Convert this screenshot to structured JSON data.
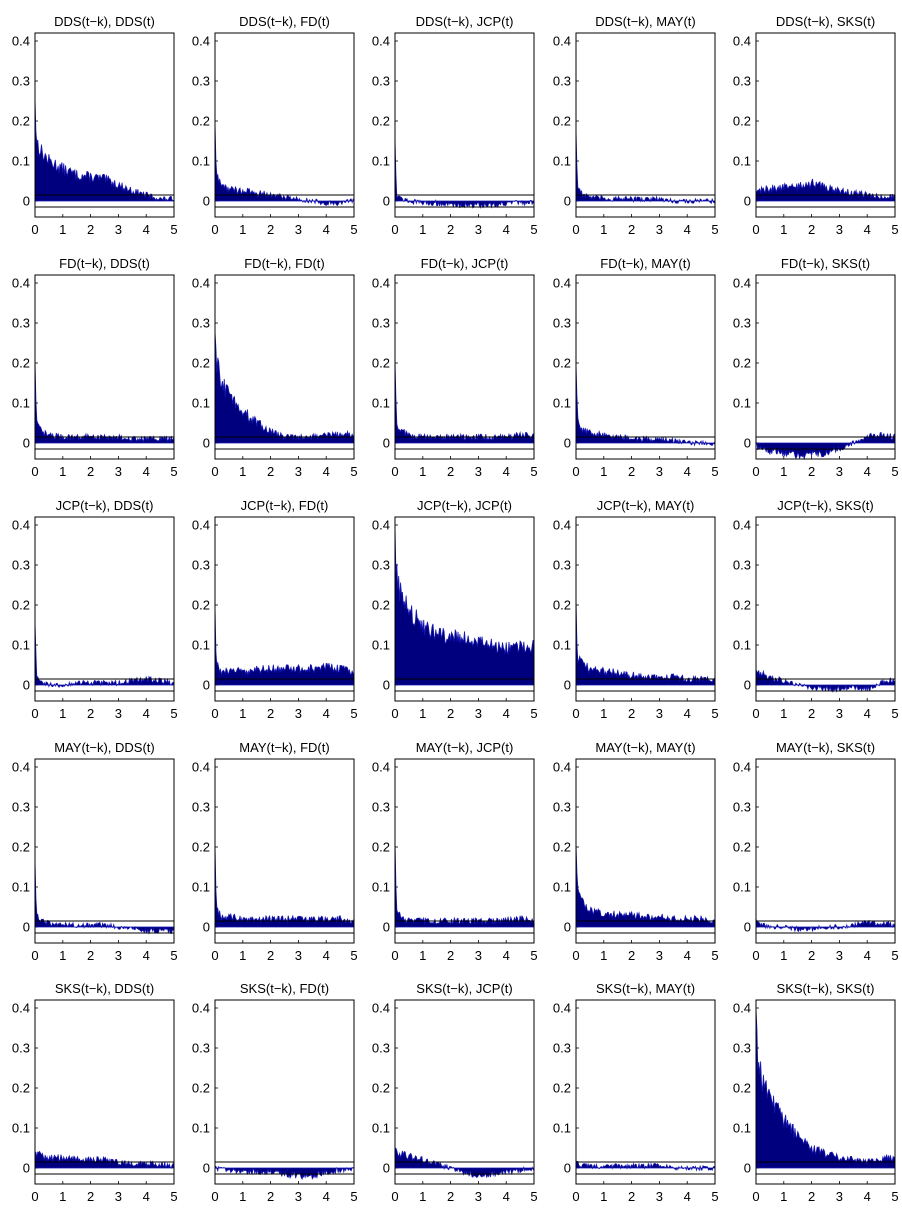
{
  "figure": {
    "yticks": [
      "0.4",
      "0.3",
      "0.2",
      "0.1",
      "0"
    ],
    "xticks": [
      "0",
      "1",
      "2",
      "3",
      "4",
      "5"
    ],
    "colors": {
      "fill": "#00007f",
      "stroke": "#1515b0",
      "axis": "#000000",
      "background": "#ffffff"
    }
  },
  "chart_data": [
    {
      "type": "area",
      "title": "DDS(t−k), DDS(t)",
      "xlim": [
        0,
        5
      ],
      "ylim": [
        -0.04,
        0.42
      ],
      "bands": [
        0.015,
        -0.015
      ],
      "x": [
        0,
        0.05,
        0.25,
        0.5,
        1,
        1.5,
        2,
        2.5,
        3,
        3.5,
        4,
        4.5,
        5
      ],
      "y": [
        0.26,
        0.15,
        0.12,
        0.1,
        0.08,
        0.065,
        0.06,
        0.055,
        0.04,
        0.025,
        0.015,
        0.005,
        0.005
      ]
    },
    {
      "type": "area",
      "title": "DDS(t−k), FD(t)",
      "xlim": [
        0,
        5
      ],
      "ylim": [
        -0.04,
        0.42
      ],
      "bands": [
        0.015,
        -0.015
      ],
      "x": [
        0,
        0.05,
        0.25,
        0.5,
        1,
        1.5,
        2,
        2.5,
        3,
        3.5,
        4,
        4.5,
        5
      ],
      "y": [
        0.2,
        0.06,
        0.04,
        0.03,
        0.025,
        0.02,
        0.015,
        0.01,
        0.005,
        0,
        -0.005,
        -0.005,
        0
      ]
    },
    {
      "type": "area",
      "title": "DDS(t−k), JCP(t)",
      "xlim": [
        0,
        5
      ],
      "ylim": [
        -0.04,
        0.42
      ],
      "bands": [
        0.015,
        -0.015
      ],
      "x": [
        0,
        0.05,
        0.25,
        0.5,
        1,
        1.5,
        2,
        2.5,
        3,
        3.5,
        4,
        4.5,
        5
      ],
      "y": [
        0.16,
        0.02,
        0.005,
        0,
        -0.005,
        -0.005,
        -0.01,
        -0.01,
        -0.01,
        -0.01,
        -0.005,
        -0.005,
        -0.005
      ]
    },
    {
      "type": "area",
      "title": "DDS(t−k), MAY(t)",
      "xlim": [
        0,
        5
      ],
      "ylim": [
        -0.04,
        0.42
      ],
      "bands": [
        0.015,
        -0.015
      ],
      "x": [
        0,
        0.05,
        0.25,
        0.5,
        1,
        1.5,
        2,
        2.5,
        3,
        3.5,
        4,
        4.5,
        5
      ],
      "y": [
        0.18,
        0.04,
        0.015,
        0.01,
        0.005,
        0.005,
        0.005,
        0.005,
        0.005,
        0,
        0,
        0,
        0
      ]
    },
    {
      "type": "area",
      "title": "DDS(t−k), SKS(t)",
      "xlim": [
        0,
        5
      ],
      "ylim": [
        -0.04,
        0.42
      ],
      "bands": [
        0.015,
        -0.015
      ],
      "x": [
        0,
        0.05,
        0.25,
        0.5,
        1,
        1.5,
        2,
        2.5,
        3,
        3.5,
        4,
        4.5,
        5
      ],
      "y": [
        0.02,
        0.025,
        0.03,
        0.03,
        0.035,
        0.035,
        0.045,
        0.035,
        0.025,
        0.02,
        0.015,
        0.01,
        0.01
      ]
    },
    {
      "type": "area",
      "title": "FD(t−k), DDS(t)",
      "xlim": [
        0,
        5
      ],
      "ylim": [
        -0.04,
        0.42
      ],
      "bands": [
        0.015,
        -0.015
      ],
      "x": [
        0,
        0.05,
        0.25,
        0.5,
        1,
        1.5,
        2,
        2.5,
        3,
        3.5,
        4,
        4.5,
        5
      ],
      "y": [
        0.21,
        0.05,
        0.025,
        0.02,
        0.015,
        0.015,
        0.015,
        0.015,
        0.015,
        0.01,
        0.01,
        0.01,
        0.01
      ]
    },
    {
      "type": "area",
      "title": "FD(t−k), FD(t)",
      "xlim": [
        0,
        5
      ],
      "ylim": [
        -0.04,
        0.42
      ],
      "bands": [
        0.015,
        -0.015
      ],
      "x": [
        0,
        0.05,
        0.25,
        0.5,
        1,
        1.5,
        2,
        2.5,
        3,
        3.5,
        4,
        4.5,
        5
      ],
      "y": [
        0.28,
        0.2,
        0.15,
        0.12,
        0.08,
        0.05,
        0.03,
        0.015,
        0.015,
        0.015,
        0.02,
        0.02,
        0.025
      ]
    },
    {
      "type": "area",
      "title": "FD(t−k), JCP(t)",
      "xlim": [
        0,
        5
      ],
      "ylim": [
        -0.04,
        0.42
      ],
      "bands": [
        0.015,
        -0.015
      ],
      "x": [
        0,
        0.05,
        0.25,
        0.5,
        1,
        1.5,
        2,
        2.5,
        3,
        3.5,
        4,
        4.5,
        5
      ],
      "y": [
        0.21,
        0.05,
        0.03,
        0.02,
        0.015,
        0.015,
        0.015,
        0.015,
        0.015,
        0.015,
        0.015,
        0.02,
        0.02
      ]
    },
    {
      "type": "area",
      "title": "FD(t−k), MAY(t)",
      "xlim": [
        0,
        5
      ],
      "ylim": [
        -0.04,
        0.42
      ],
      "bands": [
        0.015,
        -0.015
      ],
      "x": [
        0,
        0.05,
        0.25,
        0.5,
        1,
        1.5,
        2,
        2.5,
        3,
        3.5,
        4,
        4.5,
        5
      ],
      "y": [
        0.2,
        0.06,
        0.035,
        0.025,
        0.02,
        0.015,
        0.01,
        0.01,
        0.01,
        0.005,
        0,
        0,
        0
      ]
    },
    {
      "type": "area",
      "title": "FD(t−k), SKS(t)",
      "xlim": [
        0,
        5
      ],
      "ylim": [
        -0.04,
        0.42
      ],
      "bands": [
        0.015,
        -0.015
      ],
      "x": [
        0,
        0.05,
        0.25,
        0.5,
        1,
        1.5,
        2,
        2.5,
        3,
        3.5,
        4,
        4.5,
        5
      ],
      "y": [
        0,
        -0.01,
        -0.015,
        -0.02,
        -0.025,
        -0.03,
        -0.03,
        -0.025,
        -0.015,
        0,
        0.015,
        0.02,
        0.015
      ]
    },
    {
      "type": "area",
      "title": "JCP(t−k), DDS(t)",
      "xlim": [
        0,
        5
      ],
      "ylim": [
        -0.04,
        0.42
      ],
      "bands": [
        0.015,
        -0.015
      ],
      "x": [
        0,
        0.05,
        0.25,
        0.5,
        1,
        1.5,
        2,
        2.5,
        3,
        3.5,
        4,
        4.5,
        5
      ],
      "y": [
        0.16,
        0.02,
        0.005,
        0,
        0,
        0.005,
        0.005,
        0.005,
        0.005,
        0.01,
        0.015,
        0.01,
        0.005
      ]
    },
    {
      "type": "area",
      "title": "JCP(t−k), FD(t)",
      "xlim": [
        0,
        5
      ],
      "ylim": [
        -0.04,
        0.42
      ],
      "bands": [
        0.015,
        -0.015
      ],
      "x": [
        0,
        0.05,
        0.25,
        0.5,
        1,
        1.5,
        2,
        2.5,
        3,
        3.5,
        4,
        4.5,
        5
      ],
      "y": [
        0.2,
        0.05,
        0.03,
        0.035,
        0.035,
        0.04,
        0.04,
        0.04,
        0.04,
        0.04,
        0.045,
        0.04,
        0.035
      ]
    },
    {
      "type": "area",
      "title": "JCP(t−k), JCP(t)",
      "xlim": [
        0,
        5
      ],
      "ylim": [
        -0.04,
        0.42
      ],
      "bands": [
        0.015,
        -0.015
      ],
      "x": [
        0,
        0.05,
        0.25,
        0.5,
        1,
        1.5,
        2,
        2.5,
        3,
        3.5,
        4,
        4.5,
        5
      ],
      "y": [
        0.4,
        0.28,
        0.22,
        0.18,
        0.15,
        0.13,
        0.12,
        0.115,
        0.11,
        0.1,
        0.09,
        0.095,
        0.1
      ]
    },
    {
      "type": "area",
      "title": "JCP(t−k), MAY(t)",
      "xlim": [
        0,
        5
      ],
      "ylim": [
        -0.04,
        0.42
      ],
      "bands": [
        0.015,
        -0.015
      ],
      "x": [
        0,
        0.05,
        0.25,
        0.5,
        1,
        1.5,
        2,
        2.5,
        3,
        3.5,
        4,
        4.5,
        5
      ],
      "y": [
        0.22,
        0.07,
        0.05,
        0.04,
        0.035,
        0.03,
        0.025,
        0.02,
        0.02,
        0.02,
        0.015,
        0.015,
        0.015
      ]
    },
    {
      "type": "area",
      "title": "JCP(t−k), SKS(t)",
      "xlim": [
        0,
        5
      ],
      "ylim": [
        -0.04,
        0.42
      ],
      "bands": [
        0.015,
        -0.015
      ],
      "x": [
        0,
        0.05,
        0.25,
        0.5,
        1,
        1.5,
        2,
        2.5,
        3,
        3.5,
        4,
        4.5,
        5
      ],
      "y": [
        0.04,
        0.035,
        0.03,
        0.02,
        0.01,
        0,
        -0.005,
        -0.01,
        -0.01,
        -0.005,
        -0.01,
        0.005,
        0.015
      ]
    },
    {
      "type": "area",
      "title": "MAY(t−k), DDS(t)",
      "xlim": [
        0,
        5
      ],
      "ylim": [
        -0.04,
        0.42
      ],
      "bands": [
        0.015,
        -0.015
      ],
      "x": [
        0,
        0.05,
        0.25,
        0.5,
        1,
        1.5,
        2,
        2.5,
        3,
        3.5,
        4,
        4.5,
        5
      ],
      "y": [
        0.17,
        0.03,
        0.015,
        0.01,
        0.005,
        0.005,
        0.005,
        0.005,
        0,
        -0.005,
        -0.01,
        -0.01,
        -0.01
      ]
    },
    {
      "type": "area",
      "title": "MAY(t−k), FD(t)",
      "xlim": [
        0,
        5
      ],
      "ylim": [
        -0.04,
        0.42
      ],
      "bands": [
        0.015,
        -0.015
      ],
      "x": [
        0,
        0.05,
        0.25,
        0.5,
        1,
        1.5,
        2,
        2.5,
        3,
        3.5,
        4,
        4.5,
        5
      ],
      "y": [
        0.21,
        0.04,
        0.025,
        0.025,
        0.02,
        0.02,
        0.02,
        0.02,
        0.02,
        0.02,
        0.02,
        0.02,
        0.015
      ]
    },
    {
      "type": "area",
      "title": "MAY(t−k), JCP(t)",
      "xlim": [
        0,
        5
      ],
      "ylim": [
        -0.04,
        0.42
      ],
      "bands": [
        0.015,
        -0.015
      ],
      "x": [
        0,
        0.05,
        0.25,
        0.5,
        1,
        1.5,
        2,
        2.5,
        3,
        3.5,
        4,
        4.5,
        5
      ],
      "y": [
        0.22,
        0.05,
        0.02,
        0.015,
        0.015,
        0.015,
        0.015,
        0.015,
        0.015,
        0.015,
        0.02,
        0.02,
        0.02
      ]
    },
    {
      "type": "area",
      "title": "MAY(t−k), MAY(t)",
      "xlim": [
        0,
        5
      ],
      "ylim": [
        -0.04,
        0.42
      ],
      "bands": [
        0.015,
        -0.015
      ],
      "x": [
        0,
        0.05,
        0.25,
        0.5,
        1,
        1.5,
        2,
        2.5,
        3,
        3.5,
        4,
        4.5,
        5
      ],
      "y": [
        0.21,
        0.1,
        0.06,
        0.045,
        0.035,
        0.03,
        0.03,
        0.025,
        0.025,
        0.02,
        0.02,
        0.02,
        0.015
      ]
    },
    {
      "type": "area",
      "title": "MAY(t−k), SKS(t)",
      "xlim": [
        0,
        5
      ],
      "ylim": [
        -0.04,
        0.42
      ],
      "bands": [
        0.015,
        -0.015
      ],
      "x": [
        0,
        0.05,
        0.25,
        0.5,
        1,
        1.5,
        2,
        2.5,
        3,
        3.5,
        4,
        4.5,
        5
      ],
      "y": [
        0.02,
        0.01,
        0.005,
        0,
        0,
        -0.005,
        -0.005,
        0,
        0,
        0.005,
        0.01,
        0.01,
        0.005
      ]
    },
    {
      "type": "area",
      "title": "SKS(t−k), DDS(t)",
      "xlim": [
        0,
        5
      ],
      "ylim": [
        -0.04,
        0.42
      ],
      "bands": [
        0.015,
        -0.015
      ],
      "x": [
        0,
        0.05,
        0.25,
        0.5,
        1,
        1.5,
        2,
        2.5,
        3,
        3.5,
        4,
        4.5,
        5
      ],
      "y": [
        0.04,
        0.035,
        0.03,
        0.025,
        0.025,
        0.02,
        0.02,
        0.02,
        0.015,
        0.01,
        0.01,
        0.01,
        0.005
      ]
    },
    {
      "type": "area",
      "title": "SKS(t−k), FD(t)",
      "xlim": [
        0,
        5
      ],
      "ylim": [
        -0.04,
        0.42
      ],
      "bands": [
        0.015,
        -0.015
      ],
      "x": [
        0,
        0.05,
        0.25,
        0.5,
        1,
        1.5,
        2,
        2.5,
        3,
        3.5,
        4,
        4.5,
        5
      ],
      "y": [
        0.005,
        0,
        -0.005,
        -0.005,
        -0.01,
        -0.01,
        -0.01,
        -0.015,
        -0.02,
        -0.02,
        -0.01,
        -0.005,
        0
      ]
    },
    {
      "type": "area",
      "title": "SKS(t−k), JCP(t)",
      "xlim": [
        0,
        5
      ],
      "ylim": [
        -0.04,
        0.42
      ],
      "bands": [
        0.015,
        -0.015
      ],
      "x": [
        0,
        0.05,
        0.25,
        0.5,
        1,
        1.5,
        2,
        2.5,
        3,
        3.5,
        4,
        4.5,
        5
      ],
      "y": [
        0.05,
        0.04,
        0.035,
        0.03,
        0.02,
        0.01,
        0,
        -0.015,
        -0.02,
        -0.015,
        -0.01,
        -0.005,
        0
      ]
    },
    {
      "type": "area",
      "title": "SKS(t−k), MAY(t)",
      "xlim": [
        0,
        5
      ],
      "ylim": [
        -0.04,
        0.42
      ],
      "bands": [
        0.015,
        -0.015
      ],
      "x": [
        0,
        0.05,
        0.25,
        0.5,
        1,
        1.5,
        2,
        2.5,
        3,
        3.5,
        4,
        4.5,
        5
      ],
      "y": [
        0.015,
        0.01,
        0.005,
        0.005,
        0.005,
        0.005,
        0.005,
        0.005,
        0.005,
        0,
        0,
        0,
        0
      ]
    },
    {
      "type": "area",
      "title": "SKS(t−k), SKS(t)",
      "xlim": [
        0,
        5
      ],
      "ylim": [
        -0.04,
        0.42
      ],
      "bands": [
        0.015,
        -0.015
      ],
      "x": [
        0,
        0.05,
        0.25,
        0.5,
        1,
        1.5,
        2,
        2.5,
        3,
        3.5,
        4,
        4.5,
        5
      ],
      "y": [
        0.4,
        0.27,
        0.21,
        0.17,
        0.12,
        0.08,
        0.05,
        0.035,
        0.025,
        0.02,
        0.02,
        0.025,
        0.025
      ]
    }
  ]
}
